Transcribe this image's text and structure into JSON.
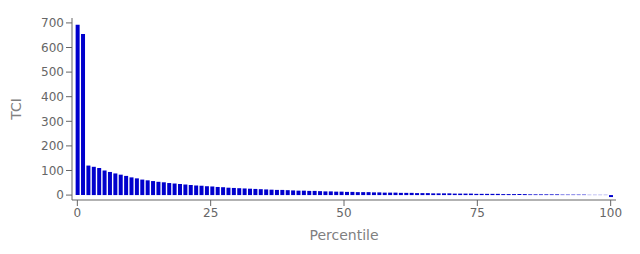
{
  "chart_data": {
    "type": "bar",
    "xlabel": "Percentile",
    "ylabel": "TCI",
    "color": "#0000CD",
    "xlim": [
      -1,
      101
    ],
    "ylim": [
      -20,
      720
    ],
    "xticks": [
      0,
      25,
      50,
      75,
      100
    ],
    "yticks": [
      0,
      100,
      200,
      300,
      400,
      500,
      600,
      700
    ],
    "grid": false,
    "x": [
      0,
      1.01,
      2.02,
      3.03,
      4.04,
      5.05,
      6.06,
      7.07,
      8.08,
      9.09,
      10.1,
      11.11,
      12.12,
      13.13,
      14.14,
      15.15,
      16.16,
      17.17,
      18.18,
      19.19,
      20.2,
      21.21,
      22.22,
      23.23,
      24.24,
      25.25,
      26.26,
      27.27,
      28.28,
      29.29,
      30.3,
      31.31,
      32.32,
      33.33,
      34.34,
      35.35,
      36.36,
      37.37,
      38.38,
      39.39,
      40.4,
      41.41,
      42.42,
      43.43,
      44.44,
      45.45,
      46.46,
      47.47,
      48.48,
      49.49,
      50.51,
      51.52,
      52.53,
      53.54,
      54.55,
      55.56,
      56.57,
      57.58,
      58.59,
      59.6,
      60.61,
      61.62,
      62.63,
      63.64,
      64.65,
      65.66,
      66.67,
      67.68,
      68.69,
      69.7,
      70.71,
      71.72,
      72.73,
      73.74,
      74.75,
      75.76,
      76.77,
      77.78,
      78.79,
      79.8,
      80.81,
      81.82,
      82.83,
      83.84,
      84.85,
      85.86,
      86.87,
      87.88,
      88.89,
      89.9,
      90.91,
      91.92,
      92.93,
      93.94,
      94.95,
      95.96,
      96.97,
      97.98,
      98.99,
      100
    ],
    "values": [
      693,
      655,
      120,
      115,
      110,
      100,
      94,
      88,
      83,
      78,
      72,
      68,
      63,
      60,
      57,
      54,
      52,
      49,
      47,
      45,
      43,
      41,
      39,
      38,
      36,
      35,
      33,
      32,
      30,
      29,
      28,
      27,
      26,
      25,
      24,
      23,
      22,
      21,
      21,
      20,
      19,
      18,
      18,
      17,
      17,
      16,
      15,
      15,
      14,
      14,
      13,
      13,
      12,
      12,
      12,
      11,
      11,
      10,
      10,
      10,
      9,
      9,
      9,
      8,
      8,
      8,
      7,
      7,
      7,
      7,
      6,
      6,
      6,
      6,
      5,
      5,
      5,
      5,
      5,
      4,
      4,
      4,
      4,
      4,
      3,
      3,
      3,
      3,
      3,
      3,
      2,
      2,
      2,
      2,
      2,
      1,
      1,
      1,
      1,
      -8
    ]
  }
}
